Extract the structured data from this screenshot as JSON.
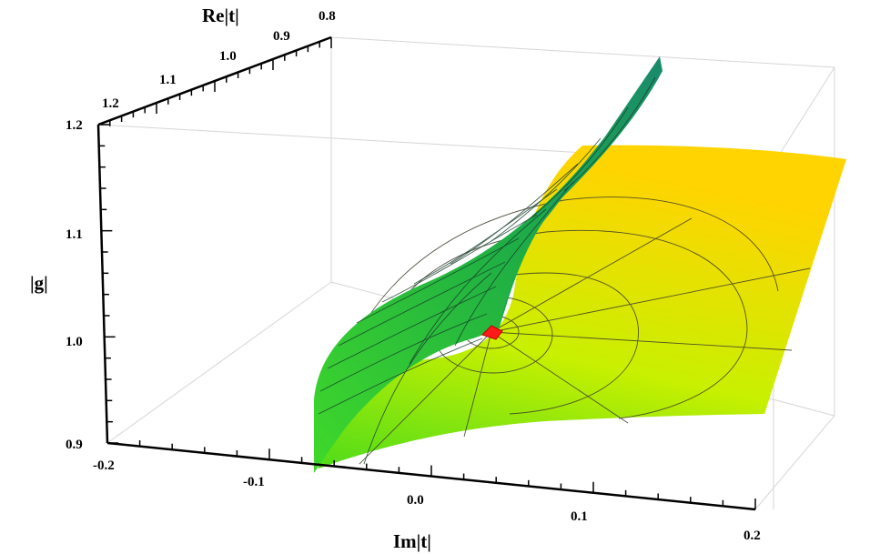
{
  "chart_data": {
    "type": "surface3d",
    "title": "",
    "axes": {
      "x": {
        "label": "Im|t|",
        "range": [
          -0.2,
          0.2
        ],
        "ticks": [
          "-0.2",
          "-0.1",
          "0.0",
          "0.1",
          "0.2"
        ]
      },
      "y": {
        "label": "Re|t|",
        "range": [
          0.8,
          1.2
        ],
        "ticks": [
          "0.8",
          "0.9",
          "1.0",
          "1.1",
          "1.2"
        ]
      },
      "z": {
        "label": "|g|",
        "range": [
          0.9,
          1.2
        ],
        "ticks": [
          "0.9",
          "1.0",
          "1.1",
          "1.2"
        ]
      }
    },
    "surfaces": [
      {
        "name": "",
        "color_low": "#4fdc1a",
        "color_high": "#ffd400",
        "description_colors": "yellow"
      },
      {
        "name": "",
        "color_low": "#2fcf2a",
        "color_high": "#1e8f6a",
        "description_colors": "green"
      }
    ],
    "marker": {
      "color": "#ff1a1a",
      "position": {
        "im": 0.0,
        "re": 1.0,
        "abs_g": 1.0
      }
    },
    "box": true,
    "grid": false
  }
}
